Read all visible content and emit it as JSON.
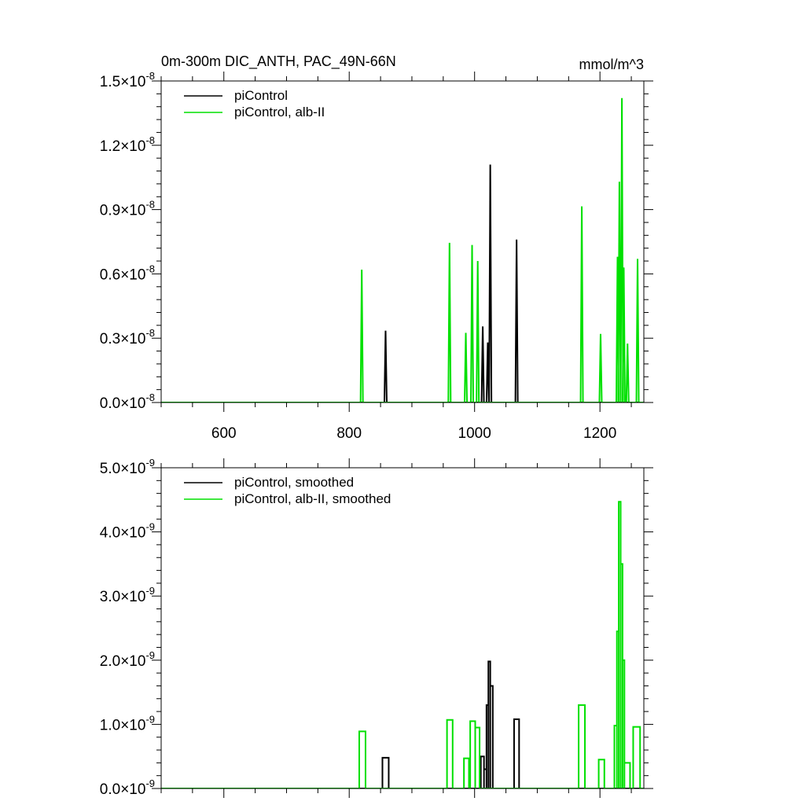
{
  "chart_data": [
    {
      "type": "line",
      "title": "0m-300m DIC_ANTH, PAC_49N-66N",
      "units": "mmol/m^3",
      "xlim": [
        500,
        1270
      ],
      "ylim": [
        0,
        1.5e-08
      ],
      "x_ticks": [
        600,
        800,
        1000,
        1200
      ],
      "x_tick_labels": [
        "600",
        "800",
        "1000",
        "1200"
      ],
      "y_ticks": [
        0,
        3e-09,
        6e-09,
        9e-09,
        1.2e-08,
        1.5e-08
      ],
      "y_tick_mantissas": [
        "0.0",
        "0.3",
        "0.6",
        "0.9",
        "1.2",
        "1.5"
      ],
      "y_tick_times": "×10",
      "y_tick_exponent": "-8",
      "legend_position": "top-left",
      "series": [
        {
          "name": "piControl",
          "color": "#000000",
          "spikes": [
            [
              858,
              3.35e-09
            ],
            [
              1013,
              3.55e-09
            ],
            [
              1021,
              2.8e-09
            ],
            [
              1025,
              1.11e-08
            ],
            [
              1067,
              7.6e-09
            ]
          ]
        },
        {
          "name": "piControl, alb-II",
          "color": "#00e000",
          "spikes": [
            [
              820,
              6.2e-09
            ],
            [
              960,
              7.45e-09
            ],
            [
              986,
              3.25e-09
            ],
            [
              996,
              7.35e-09
            ],
            [
              1005,
              6.6e-09
            ],
            [
              1171,
              9.15e-09
            ],
            [
              1201,
              3.2e-09
            ],
            [
              1228,
              6.8e-09
            ],
            [
              1231,
              1.03e-08
            ],
            [
              1235,
              1.42e-08
            ],
            [
              1238,
              6.3e-09
            ],
            [
              1244,
              2.75e-09
            ],
            [
              1260,
              6.7e-09
            ]
          ]
        }
      ]
    },
    {
      "type": "line",
      "xlim": [
        500,
        1270
      ],
      "ylim": [
        0,
        5e-09
      ],
      "x_ticks": [
        600,
        800,
        1000,
        1200
      ],
      "y_ticks": [
        0,
        1e-09,
        2e-09,
        3e-09,
        4e-09,
        5e-09
      ],
      "y_tick_mantissas": [
        "0.0",
        "1.0",
        "2.0",
        "3.0",
        "4.0",
        "5.0"
      ],
      "y_tick_times": "×10",
      "y_tick_exponent": "-9",
      "legend_position": "top-left",
      "series": [
        {
          "name": "piControl, smoothed",
          "color": "#000000",
          "steps": [
            [
              853,
              863,
              4.8e-10
            ],
            [
              1010,
              1015,
              5e-10
            ],
            [
              1015,
              1019,
              3e-10
            ],
            [
              1019,
              1022,
              1.3e-09
            ],
            [
              1022,
              1025,
              1.98e-09
            ],
            [
              1025,
              1029,
              1.6e-09
            ],
            [
              1063,
              1071,
              1.08e-09
            ]
          ]
        },
        {
          "name": "piControl, alb-II, smoothed",
          "color": "#00e000",
          "steps": [
            [
              816,
              826,
              8.9e-10
            ],
            [
              956,
              965,
              1.07e-09
            ],
            [
              983,
              991,
              4.7e-10
            ],
            [
              993,
              1001,
              1.05e-09
            ],
            [
              1001,
              1008,
              9.5e-10
            ],
            [
              1166,
              1176,
              1.3e-09
            ],
            [
              1198,
              1207,
              4.5e-10
            ],
            [
              1223,
              1227,
              9.8e-10
            ],
            [
              1227,
              1230,
              2.45e-09
            ],
            [
              1230,
              1233,
              4.47e-09
            ],
            [
              1233,
              1236,
              3.5e-09
            ],
            [
              1236,
              1239,
              2e-09
            ],
            [
              1239,
              1248,
              4e-10
            ],
            [
              1253,
              1264,
              9.6e-10
            ]
          ]
        }
      ]
    }
  ]
}
